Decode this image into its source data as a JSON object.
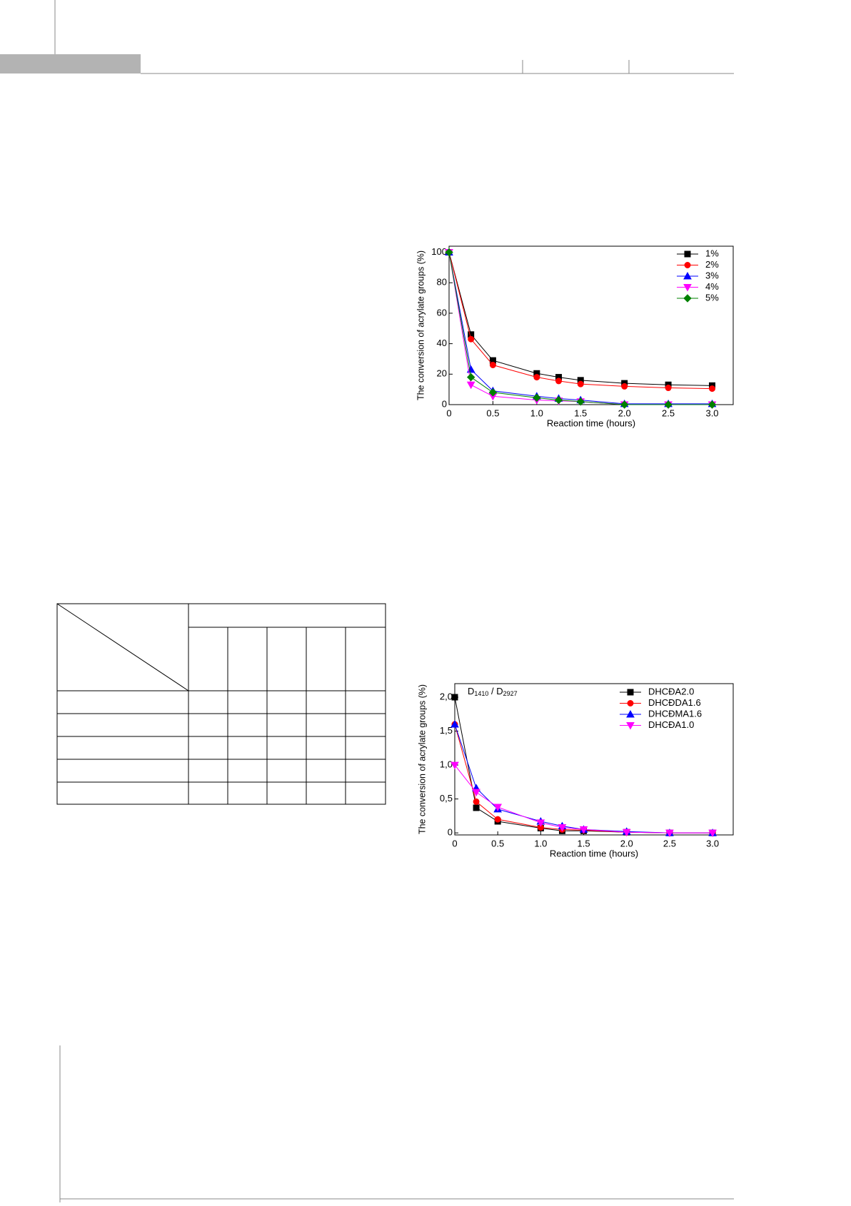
{
  "chart_data": [
    {
      "type": "line",
      "x_label": "Reaction time (hours)",
      "y_label": "The conversion of acrylate groups (%)",
      "x": [
        0,
        0.25,
        0.5,
        1.0,
        1.25,
        1.5,
        2.0,
        2.5,
        3.0
      ],
      "series": [
        {
          "name": "1%",
          "color": "#000000",
          "marker": "square",
          "values": [
            100,
            46,
            29,
            20.5,
            18,
            16,
            14,
            13,
            12.5
          ]
        },
        {
          "name": "2%",
          "color": "#ff0000",
          "marker": "circle",
          "values": [
            100,
            43,
            26,
            18,
            15.5,
            13.5,
            12,
            11,
            10.5
          ]
        },
        {
          "name": "3%",
          "color": "#0000ff",
          "marker": "triangle",
          "values": [
            100,
            23,
            9,
            5.5,
            4,
            3,
            0.5,
            0.5,
            0.5
          ]
        },
        {
          "name": "4%",
          "color": "#ff00ff",
          "marker": "triangle-down",
          "values": [
            100,
            13,
            5.5,
            3,
            2.5,
            2,
            0,
            0,
            0
          ]
        },
        {
          "name": "5%",
          "color": "#008000",
          "marker": "diamond",
          "values": [
            100,
            18,
            8,
            4.5,
            3,
            2,
            0,
            0,
            0
          ]
        }
      ],
      "xlim": [
        0,
        3.24
      ],
      "xticks": [
        0,
        0.5,
        {
          "value": 1,
          "label": "1.0"
        },
        1.5,
        {
          "value": 2,
          "label": "2.0"
        },
        2.5,
        {
          "value": 3,
          "label": "3.0"
        }
      ],
      "ylim": [
        0,
        104
      ],
      "yticks": [
        0,
        20,
        40,
        60,
        80,
        100
      ],
      "legend": "upper right"
    },
    {
      "type": "line",
      "annotation": [
        "D",
        "1410",
        " / D",
        "2927"
      ],
      "x_label": "Reaction time (hours)",
      "y_label": "The conversion of acrylate groups (%)",
      "x": [
        0,
        0.25,
        0.5,
        1.0,
        1.25,
        1.5,
        2.0,
        2.5,
        3.0
      ],
      "series": [
        {
          "name": "DHCĐA2.0",
          "color": "#000000",
          "marker": "square",
          "values": [
            2.0,
            0.37,
            0.17,
            0.07,
            0.03,
            0.03,
            0.01,
            0,
            0
          ]
        },
        {
          "name": "DHCĐDA1.6",
          "color": "#ff0000",
          "marker": "circle",
          "values": [
            1.6,
            0.46,
            0.2,
            0.08,
            0.05,
            0.04,
            0.01,
            0,
            0
          ]
        },
        {
          "name": "DHCĐMA1.6",
          "color": "#0000ff",
          "marker": "triangle",
          "values": [
            1.6,
            0.66,
            0.35,
            0.17,
            0.1,
            0.05,
            0.02,
            0,
            0
          ]
        },
        {
          "name": "DHCĐA1.0",
          "color": "#ff00ff",
          "marker": "triangle-down",
          "values": [
            1.0,
            0.6,
            0.38,
            0.15,
            0.08,
            0.05,
            0.01,
            0,
            0
          ]
        }
      ],
      "xlim": [
        0,
        3.24
      ],
      "xticks": [
        0,
        0.5,
        {
          "value": 1,
          "label": "1.0"
        },
        1.5,
        {
          "value": 2,
          "label": "2.0"
        },
        2.5,
        {
          "value": 3,
          "label": "3.0"
        }
      ],
      "ylim": [
        -0.03,
        2.2
      ],
      "yticks": [
        0,
        {
          "value": 0.5,
          "label": "0,5"
        },
        {
          "value": 1,
          "label": "1,0"
        },
        {
          "value": 1.5,
          "label": "1,5"
        },
        {
          "value": 2,
          "label": "2,0"
        }
      ],
      "legend": "upper right"
    }
  ]
}
